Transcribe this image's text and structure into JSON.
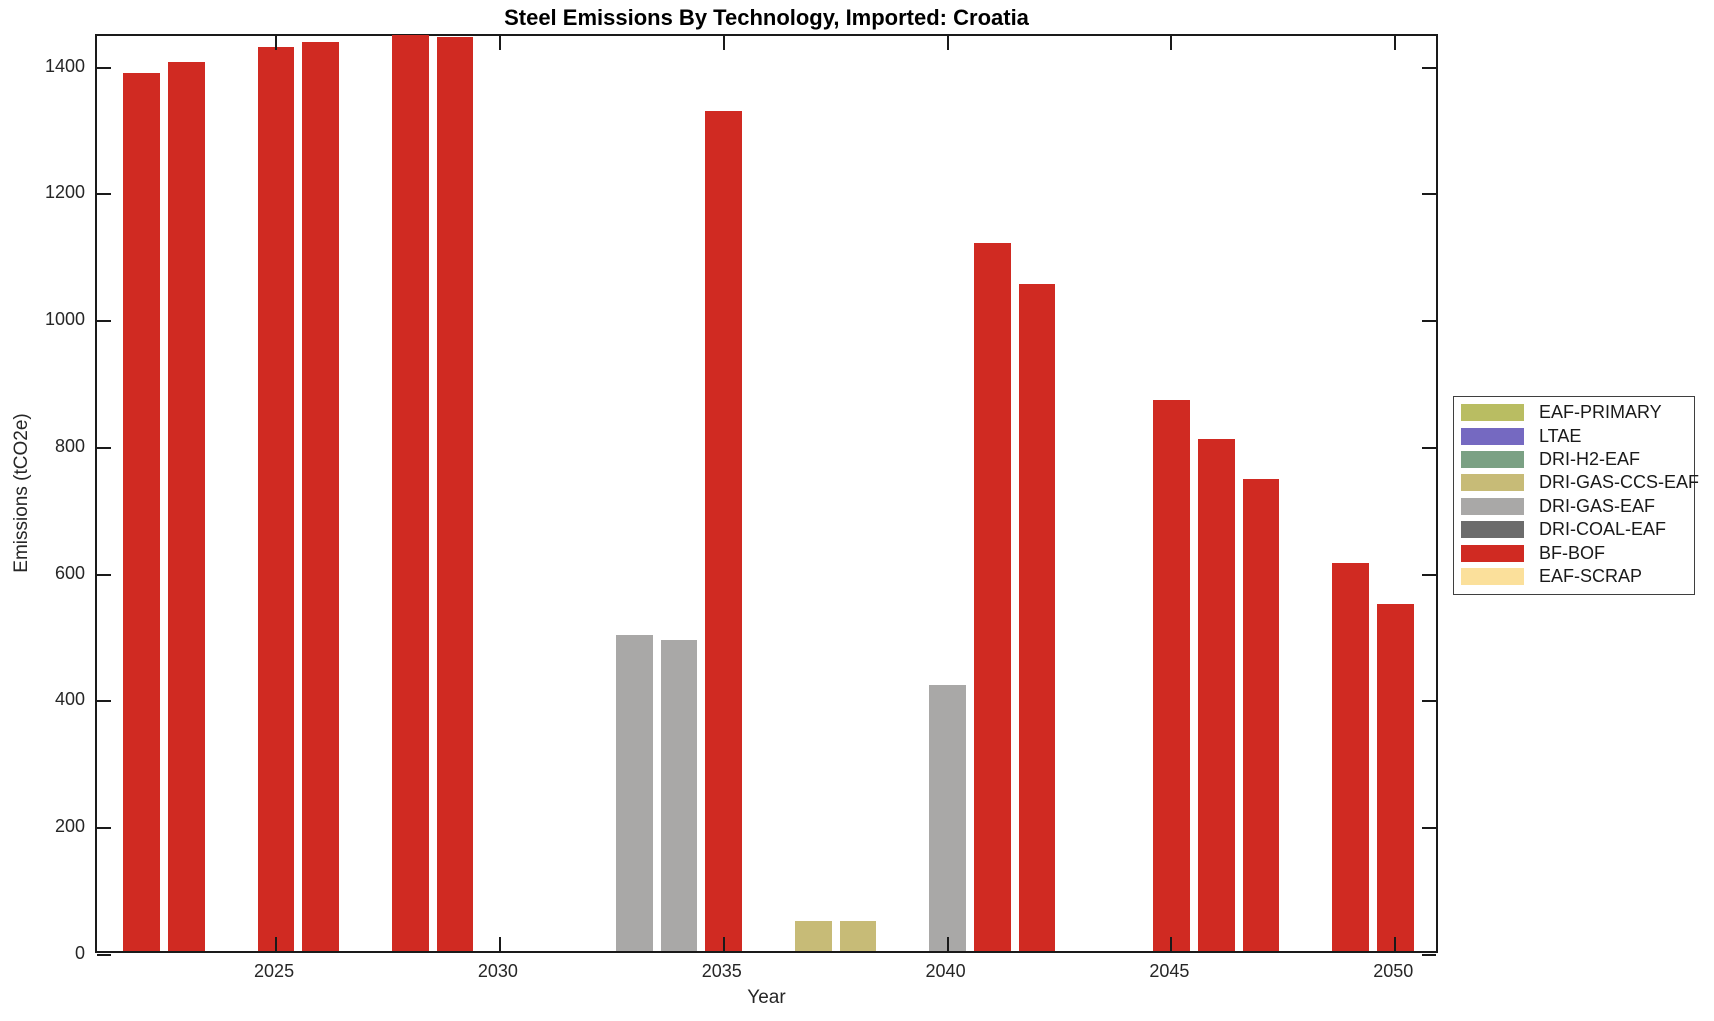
{
  "chart_data": {
    "type": "bar",
    "title": "Steel Emissions By Technology, Imported: Croatia",
    "xlabel": "Year",
    "ylabel": "Emissions (tCO2e)",
    "xlim": [
      2021,
      2051
    ],
    "ylim": [
      0,
      1450
    ],
    "x_ticks": [
      2025,
      2030,
      2035,
      2040,
      2045,
      2050
    ],
    "y_ticks": [
      0,
      200,
      400,
      600,
      800,
      1000,
      1200,
      1400
    ],
    "grid": false,
    "legend_position": "right-outside",
    "bar_width_years": 0.82,
    "series": [
      {
        "name": "EAF-PRIMARY",
        "color": "#B9BD62",
        "points": []
      },
      {
        "name": "LTAE",
        "color": "#7569C1",
        "points": []
      },
      {
        "name": "DRI-H2-EAF",
        "color": "#7BA184",
        "points": []
      },
      {
        "name": "DRI-GAS-CCS-EAF",
        "color": "#C7BB77",
        "points": [
          {
            "x": 2037,
            "y": 48
          },
          {
            "x": 2038,
            "y": 47
          }
        ]
      },
      {
        "name": "DRI-GAS-EAF",
        "color": "#A9A8A7",
        "points": [
          {
            "x": 2033,
            "y": 499
          },
          {
            "x": 2034,
            "y": 491
          },
          {
            "x": 2040,
            "y": 420
          }
        ]
      },
      {
        "name": "DRI-COAL-EAF",
        "color": "#6C6C6C",
        "points": []
      },
      {
        "name": "BF-BOF",
        "color": "#D02A22",
        "points": [
          {
            "x": 2022,
            "y": 1385
          },
          {
            "x": 2023,
            "y": 1402
          },
          {
            "x": 2025,
            "y": 1427
          },
          {
            "x": 2026,
            "y": 1435
          },
          {
            "x": 2028,
            "y": 1445
          },
          {
            "x": 2029,
            "y": 1442
          },
          {
            "x": 2035,
            "y": 1325
          },
          {
            "x": 2041,
            "y": 1117
          },
          {
            "x": 2042,
            "y": 1053
          },
          {
            "x": 2045,
            "y": 870
          },
          {
            "x": 2046,
            "y": 808
          },
          {
            "x": 2047,
            "y": 744
          },
          {
            "x": 2049,
            "y": 613
          },
          {
            "x": 2050,
            "y": 547
          }
        ]
      },
      {
        "name": "EAF-SCRAP",
        "color": "#FBE09B",
        "points": []
      }
    ]
  }
}
